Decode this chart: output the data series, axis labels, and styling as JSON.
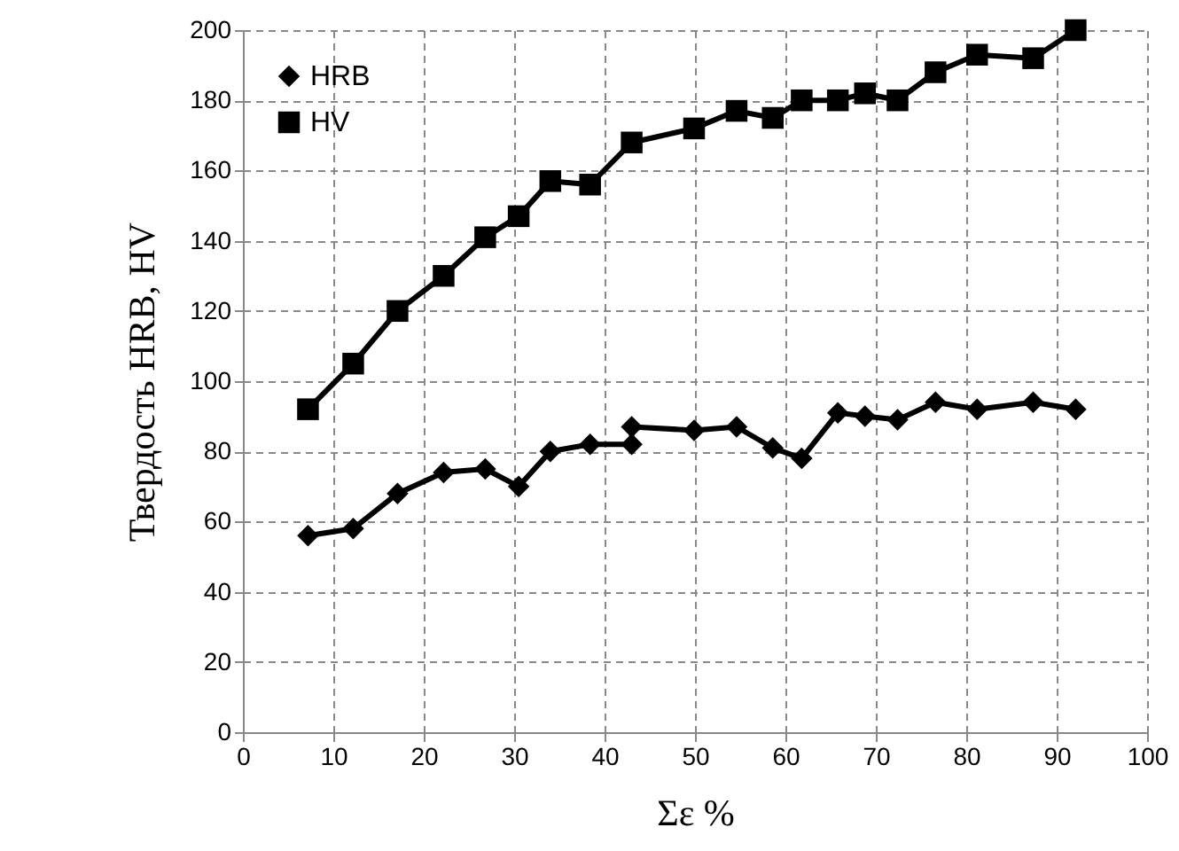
{
  "chart_data": {
    "type": "line",
    "xlabel": "Σε %",
    "ylabel": "Твердость HRB, HV",
    "xlim": [
      0,
      100
    ],
    "xticks": [
      0,
      10,
      20,
      30,
      40,
      50,
      60,
      70,
      80,
      90,
      100
    ],
    "ylim": [
      0,
      200
    ],
    "yticks": [
      0,
      20,
      40,
      60,
      80,
      100,
      120,
      140,
      160,
      180,
      200
    ],
    "grid": true,
    "legend": "top left",
    "line_style": "solid",
    "series": [
      {
        "name": "HRB",
        "color": "#000000",
        "marker": "diamond",
        "x": [
          7.2,
          12.2,
          17.1,
          22.2,
          26.8,
          30.5,
          34,
          38.4,
          43,
          43,
          49.9,
          54.6,
          58.6,
          61.8,
          65.8,
          68.8,
          72.4,
          76.6,
          81.2,
          87.4,
          92.1
        ],
        "values": [
          56,
          58,
          68,
          74,
          75,
          70,
          80,
          82,
          82,
          87,
          86,
          87,
          81,
          78,
          91,
          90,
          89,
          94,
          92,
          94,
          92
        ]
      },
      {
        "name": "HV",
        "color": "#000000",
        "marker": "square",
        "x": [
          7.2,
          12.2,
          17.1,
          22.2,
          26.8,
          30.5,
          34,
          38.4,
          43,
          49.9,
          54.6,
          58.6,
          61.8,
          65.8,
          68.8,
          72.4,
          76.6,
          81.2,
          87.4,
          92.1
        ],
        "values": [
          92,
          105,
          120,
          130,
          141,
          147,
          157,
          156,
          168,
          172,
          177,
          175,
          180,
          180,
          182,
          180,
          188,
          193,
          192,
          200
        ]
      }
    ]
  }
}
